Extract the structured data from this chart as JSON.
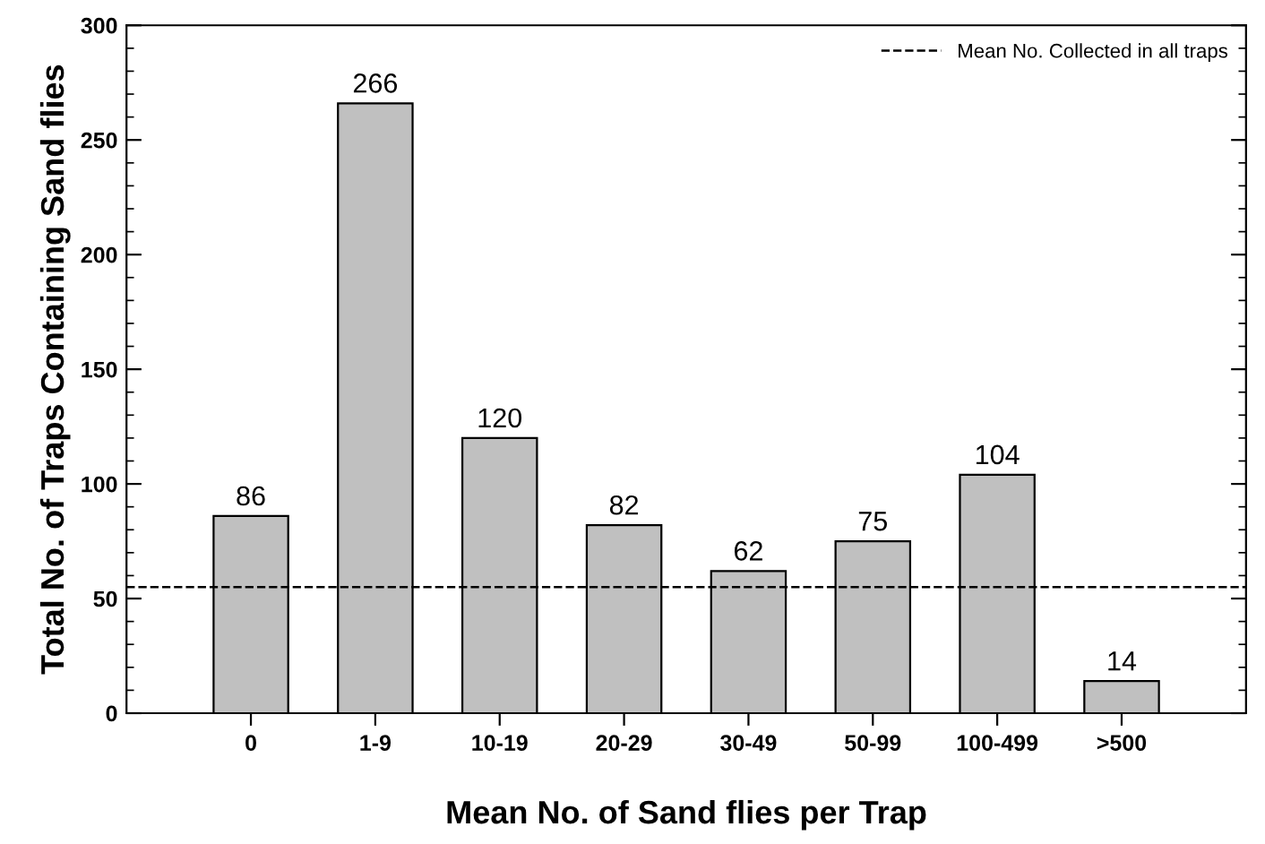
{
  "chart_data": {
    "type": "bar",
    "xlabel": "Mean No. of Sand flies per Trap",
    "ylabel": "Total No. of Traps Containing Sand flies",
    "categories": [
      "0",
      "1-9",
      "10-19",
      "20-29",
      "30-49",
      "50-99",
      "100-499",
      ">500"
    ],
    "values": [
      86,
      266,
      120,
      82,
      62,
      75,
      104,
      14
    ],
    "color": "#c0c0c0",
    "data_labels": true,
    "ylim": [
      0,
      300
    ],
    "yticks": [
      0,
      50,
      100,
      150,
      200,
      250,
      300
    ],
    "ref_lines": [
      {
        "axis": "y",
        "value": 55,
        "label": "Mean No. Collected in all traps",
        "color": "#000000",
        "line_style": "dashed"
      }
    ],
    "legend": "top right",
    "grid": false
  }
}
